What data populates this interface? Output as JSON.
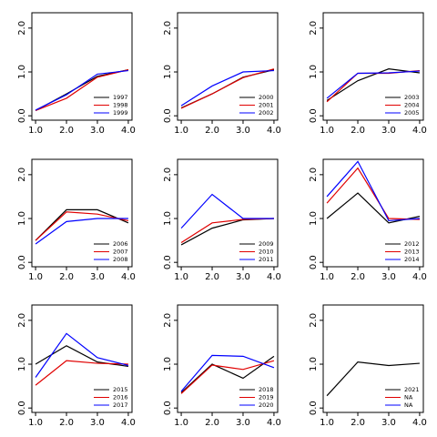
{
  "chart_data": [
    {
      "type": "line",
      "x": [
        1,
        2,
        3,
        4
      ],
      "xlim": [
        0.88,
        4.12
      ],
      "xticks": [
        {
          "value": 1,
          "label": "1.0"
        },
        {
          "value": 2,
          "label": "2.0"
        },
        {
          "value": 3,
          "label": "3.0"
        },
        {
          "value": 4,
          "label": "4.0"
        }
      ],
      "ylim": [
        -0.1,
        2.35
      ],
      "yticks": [
        {
          "value": 0,
          "label": "0.0"
        },
        {
          "value": 1,
          "label": "1.0"
        },
        {
          "value": 2,
          "label": "2.0"
        }
      ],
      "legend": "bottom-right",
      "series": [
        {
          "name": "1997",
          "color": "#000000",
          "values": [
            0.12,
            0.5,
            0.9,
            1.05
          ]
        },
        {
          "name": "1998",
          "color": "#e00000",
          "values": [
            0.12,
            0.4,
            0.88,
            1.05
          ]
        },
        {
          "name": "1999",
          "color": "#0000ff",
          "values": [
            0.13,
            0.48,
            0.95,
            1.03
          ]
        }
      ]
    },
    {
      "type": "line",
      "x": [
        1,
        2,
        3,
        4
      ],
      "xlim": [
        0.88,
        4.12
      ],
      "xticks": [
        {
          "value": 1,
          "label": "1.0"
        },
        {
          "value": 2,
          "label": "2.0"
        },
        {
          "value": 3,
          "label": "3.0"
        },
        {
          "value": 4,
          "label": "4.0"
        }
      ],
      "ylim": [
        -0.1,
        2.35
      ],
      "yticks": [
        {
          "value": 0,
          "label": "0.0"
        },
        {
          "value": 1,
          "label": "1.0"
        },
        {
          "value": 2,
          "label": "2.0"
        }
      ],
      "legend": "bottom-right",
      "series": [
        {
          "name": "2000",
          "color": "#000000",
          "values": [
            0.18,
            0.5,
            0.88,
            1.05
          ]
        },
        {
          "name": "2001",
          "color": "#e00000",
          "values": [
            0.17,
            0.5,
            0.87,
            1.07
          ]
        },
        {
          "name": "2002",
          "color": "#0000ff",
          "values": [
            0.23,
            0.68,
            1.0,
            1.03
          ]
        }
      ]
    },
    {
      "type": "line",
      "x": [
        1,
        2,
        3,
        4
      ],
      "xlim": [
        0.88,
        4.12
      ],
      "xticks": [
        {
          "value": 1,
          "label": "1.0"
        },
        {
          "value": 2,
          "label": "2.0"
        },
        {
          "value": 3,
          "label": "3.0"
        },
        {
          "value": 4,
          "label": "4.0"
        }
      ],
      "ylim": [
        -0.1,
        2.35
      ],
      "yticks": [
        {
          "value": 0,
          "label": "0.0"
        },
        {
          "value": 1,
          "label": "1.0"
        },
        {
          "value": 2,
          "label": "2.0"
        }
      ],
      "legend": "bottom-right",
      "series": [
        {
          "name": "2003",
          "color": "#000000",
          "values": [
            0.35,
            0.8,
            1.07,
            0.98
          ]
        },
        {
          "name": "2004",
          "color": "#e00000",
          "values": [
            0.32,
            0.97,
            0.97,
            1.03
          ]
        },
        {
          "name": "2005",
          "color": "#0000ff",
          "values": [
            0.4,
            0.97,
            0.98,
            1.02
          ]
        }
      ]
    },
    {
      "type": "line",
      "x": [
        1,
        2,
        3,
        4
      ],
      "xlim": [
        0.88,
        4.12
      ],
      "xticks": [
        {
          "value": 1,
          "label": "1.0"
        },
        {
          "value": 2,
          "label": "2.0"
        },
        {
          "value": 3,
          "label": "3.0"
        },
        {
          "value": 4,
          "label": "4.0"
        }
      ],
      "ylim": [
        -0.1,
        2.35
      ],
      "yticks": [
        {
          "value": 0,
          "label": "0.0"
        },
        {
          "value": 1,
          "label": "1.0"
        },
        {
          "value": 2,
          "label": "2.0"
        }
      ],
      "legend": "bottom-right",
      "series": [
        {
          "name": "2006",
          "color": "#000000",
          "values": [
            0.5,
            1.2,
            1.2,
            0.9
          ]
        },
        {
          "name": "2007",
          "color": "#e00000",
          "values": [
            0.5,
            1.15,
            1.1,
            0.95
          ]
        },
        {
          "name": "2008",
          "color": "#0000ff",
          "values": [
            0.42,
            0.93,
            1.0,
            1.0
          ]
        }
      ]
    },
    {
      "type": "line",
      "x": [
        1,
        2,
        3,
        4
      ],
      "xlim": [
        0.88,
        4.12
      ],
      "xticks": [
        {
          "value": 1,
          "label": "1.0"
        },
        {
          "value": 2,
          "label": "2.0"
        },
        {
          "value": 3,
          "label": "3.0"
        },
        {
          "value": 4,
          "label": "4.0"
        }
      ],
      "ylim": [
        -0.1,
        2.35
      ],
      "yticks": [
        {
          "value": 0,
          "label": "0.0"
        },
        {
          "value": 1,
          "label": "1.0"
        },
        {
          "value": 2,
          "label": "2.0"
        }
      ],
      "legend": "bottom-right",
      "series": [
        {
          "name": "2009",
          "color": "#000000",
          "values": [
            0.4,
            0.78,
            0.97,
            1.0
          ]
        },
        {
          "name": "2010",
          "color": "#e00000",
          "values": [
            0.45,
            0.9,
            0.98,
            1.0
          ]
        },
        {
          "name": "2011",
          "color": "#0000ff",
          "values": [
            0.78,
            1.55,
            1.0,
            1.0
          ]
        }
      ]
    },
    {
      "type": "line",
      "x": [
        1,
        2,
        3,
        4
      ],
      "xlim": [
        0.88,
        4.12
      ],
      "xticks": [
        {
          "value": 1,
          "label": "1.0"
        },
        {
          "value": 2,
          "label": "2.0"
        },
        {
          "value": 3,
          "label": "3.0"
        },
        {
          "value": 4,
          "label": "4.0"
        }
      ],
      "ylim": [
        -0.1,
        2.35
      ],
      "yticks": [
        {
          "value": 0,
          "label": "0.0"
        },
        {
          "value": 1,
          "label": "1.0"
        },
        {
          "value": 2,
          "label": "2.0"
        }
      ],
      "legend": "bottom-right",
      "series": [
        {
          "name": "2012",
          "color": "#000000",
          "values": [
            1.0,
            1.58,
            0.9,
            1.05
          ]
        },
        {
          "name": "2013",
          "color": "#e00000",
          "values": [
            1.35,
            2.15,
            1.0,
            0.98
          ]
        },
        {
          "name": "2014",
          "color": "#0000ff",
          "values": [
            1.5,
            2.3,
            0.95,
            1.0
          ]
        }
      ]
    },
    {
      "type": "line",
      "x": [
        1,
        2,
        3,
        4
      ],
      "xlim": [
        0.88,
        4.12
      ],
      "xticks": [
        {
          "value": 1,
          "label": "1.0"
        },
        {
          "value": 2,
          "label": "2.0"
        },
        {
          "value": 3,
          "label": "3.0"
        },
        {
          "value": 4,
          "label": "4.0"
        }
      ],
      "ylim": [
        -0.1,
        2.35
      ],
      "yticks": [
        {
          "value": 0,
          "label": "0.0"
        },
        {
          "value": 1,
          "label": "1.0"
        },
        {
          "value": 2,
          "label": "2.0"
        }
      ],
      "legend": "bottom-right",
      "series": [
        {
          "name": "2015",
          "color": "#000000",
          "values": [
            1.0,
            1.42,
            1.05,
            0.95
          ]
        },
        {
          "name": "2016",
          "color": "#e00000",
          "values": [
            0.52,
            1.08,
            1.02,
            1.0
          ]
        },
        {
          "name": "2017",
          "color": "#0000ff",
          "values": [
            0.7,
            1.7,
            1.15,
            0.97
          ]
        }
      ]
    },
    {
      "type": "line",
      "x": [
        1,
        2,
        3,
        4
      ],
      "xlim": [
        0.88,
        4.12
      ],
      "xticks": [
        {
          "value": 1,
          "label": "1.0"
        },
        {
          "value": 2,
          "label": "2.0"
        },
        {
          "value": 3,
          "label": "3.0"
        },
        {
          "value": 4,
          "label": "4.0"
        }
      ],
      "ylim": [
        -0.1,
        2.35
      ],
      "yticks": [
        {
          "value": 0,
          "label": "0.0"
        },
        {
          "value": 1,
          "label": "1.0"
        },
        {
          "value": 2,
          "label": "2.0"
        }
      ],
      "legend": "bottom-right",
      "series": [
        {
          "name": "2018",
          "color": "#000000",
          "values": [
            0.35,
            1.0,
            0.68,
            1.18
          ]
        },
        {
          "name": "2019",
          "color": "#e00000",
          "values": [
            0.33,
            0.98,
            0.88,
            1.08
          ]
        },
        {
          "name": "2020",
          "color": "#0000ff",
          "values": [
            0.38,
            1.2,
            1.18,
            0.92
          ]
        }
      ]
    },
    {
      "type": "line",
      "x": [
        1,
        2,
        3,
        4
      ],
      "xlim": [
        0.88,
        4.12
      ],
      "xticks": [
        {
          "value": 1,
          "label": "1.0"
        },
        {
          "value": 2,
          "label": "2.0"
        },
        {
          "value": 3,
          "label": "3.0"
        },
        {
          "value": 4,
          "label": "4.0"
        }
      ],
      "ylim": [
        -0.1,
        2.35
      ],
      "yticks": [
        {
          "value": 0,
          "label": "0.0"
        },
        {
          "value": 1,
          "label": "1.0"
        },
        {
          "value": 2,
          "label": "2.0"
        }
      ],
      "legend": "bottom-right",
      "series": [
        {
          "name": "2021",
          "color": "#000000",
          "values": [
            0.28,
            1.05,
            0.97,
            1.02
          ]
        },
        {
          "name": "NA",
          "color": "#e00000",
          "values": [
            null,
            null,
            null,
            null
          ]
        },
        {
          "name": "NA",
          "color": "#0000ff",
          "values": [
            null,
            null,
            null,
            null
          ]
        }
      ]
    }
  ]
}
